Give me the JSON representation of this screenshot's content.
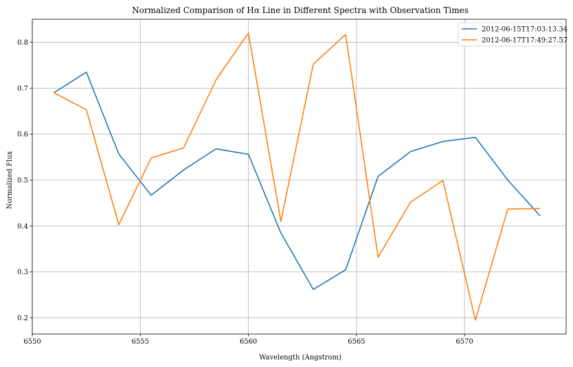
{
  "chart_data": {
    "type": "line",
    "title": "Normalized Comparison of Hα Line in Different Spectra with Observation Times",
    "xlabel": "Wavelength (Angstrom)",
    "ylabel": "Normalized Flux",
    "xlim": [
      6550,
      6574.7
    ],
    "ylim": [
      0.165,
      0.85
    ],
    "xticks": [
      6550,
      6555,
      6560,
      6565,
      6570
    ],
    "yticks": [
      0.2,
      0.3,
      0.4,
      0.5,
      0.6,
      0.7,
      0.8
    ],
    "grid": true,
    "legend_position": "top-right",
    "x": [
      6551.0,
      6552.5,
      6554.0,
      6555.5,
      6557.0,
      6558.5,
      6560.0,
      6561.5,
      6563.0,
      6564.5,
      6566.0,
      6567.5,
      6569.0,
      6570.5,
      6572.0,
      6573.5
    ],
    "series": [
      {
        "name": "2012-06-15T17:03:13.34",
        "color": "#1f77b4",
        "values": [
          0.69,
          0.735,
          0.557,
          0.467,
          0.522,
          0.568,
          0.556,
          0.385,
          0.262,
          0.305,
          0.508,
          0.562,
          0.584,
          0.593,
          0.5,
          0.422
        ]
      },
      {
        "name": "2012-06-17T17:49:27.57",
        "color": "#ff7f0e",
        "values": [
          0.69,
          0.653,
          0.403,
          0.548,
          0.57,
          0.718,
          0.82,
          0.41,
          0.752,
          0.817,
          0.332,
          0.452,
          0.499,
          0.195,
          0.437,
          0.438
        ]
      }
    ]
  }
}
